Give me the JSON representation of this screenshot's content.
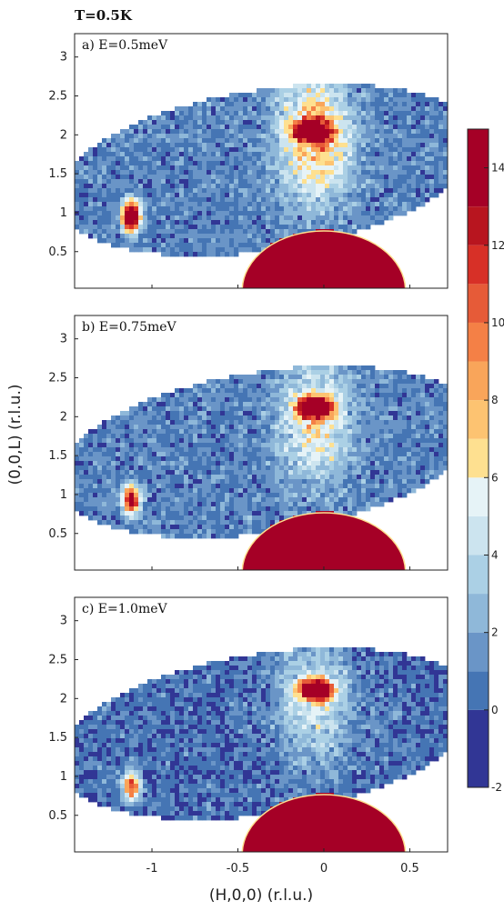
{
  "chart_data": {
    "type": "heatmap",
    "title": "T=0.5K",
    "xlabel": "(H,0,0) (r.l.u.)",
    "ylabel": "(0,0,L) (r.l.u.)",
    "xlim": [
      -1.45,
      0.72
    ],
    "ylim": [
      0.03,
      3.3
    ],
    "xticks": [
      -1,
      -0.5,
      0,
      0.5
    ],
    "yticks": [
      0.5,
      1,
      1.5,
      2,
      2.5,
      3
    ],
    "xtick_labels": [
      "-1",
      "-0.5",
      "0",
      "0.5"
    ],
    "ytick_labels": [
      "0.5",
      "1",
      "1.5",
      "2",
      "2.5",
      "3"
    ],
    "colorbar": {
      "min": -2,
      "max": 15,
      "ticks": [
        -2,
        0,
        2,
        4,
        6,
        8,
        10,
        12,
        14
      ],
      "tick_labels": [
        "-2",
        "0",
        "2",
        "4",
        "6",
        "8",
        "10",
        "12",
        "14"
      ],
      "levels": [
        -2,
        0,
        1,
        2,
        3,
        4,
        5,
        6,
        7,
        8,
        9,
        10,
        11,
        12,
        13,
        15
      ],
      "colors": [
        "#313695",
        "#4575b4",
        "#6a95c7",
        "#8fb8d9",
        "#abd0e5",
        "#cce4ef",
        "#e6f3f7",
        "#fee090",
        "#fdc371",
        "#f9a55a",
        "#f48046",
        "#e65b38",
        "#d73027",
        "#b8151f",
        "#a50026"
      ]
    },
    "panels": [
      {
        "label": "a) E=0.5meV",
        "energy_meV": 0.5,
        "features": {
          "peak_200_intensity": 15,
          "peak_200_H": -0.07,
          "peak_200_L": 2.05,
          "side_peak_H": -1.12,
          "side_peak_L": 0.95,
          "side_peak_intensity": 15,
          "column_intensity": 7.5,
          "background": 1
        }
      },
      {
        "label": "b) E=0.75meV",
        "energy_meV": 0.75,
        "features": {
          "peak_200_intensity": 15,
          "peak_200_H": -0.05,
          "peak_200_L": 2.12,
          "side_peak_H": -1.12,
          "side_peak_L": 0.93,
          "side_peak_intensity": 10,
          "column_intensity": 5.5,
          "background": 1
        }
      },
      {
        "label": "c) E=1.0meV",
        "energy_meV": 1.0,
        "features": {
          "peak_200_intensity": 14,
          "peak_200_H": -0.05,
          "peak_200_L": 2.12,
          "side_peak_H": -1.12,
          "side_peak_L": 0.88,
          "side_peak_intensity": 8,
          "column_intensity": 4.5,
          "background": 0.5
        }
      }
    ],
    "mask": {
      "type": "direct-beam",
      "center_H": 0,
      "center_L": 0,
      "radius": 0.95,
      "value": 15
    }
  }
}
